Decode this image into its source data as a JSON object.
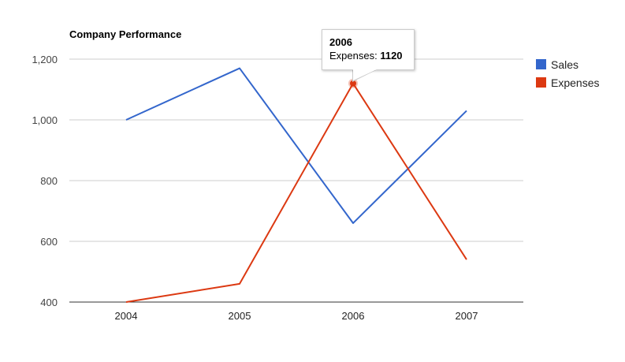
{
  "chart_data": {
    "type": "line",
    "title": "Company Performance",
    "categories": [
      "2004",
      "2005",
      "2006",
      "2007"
    ],
    "series": [
      {
        "name": "Sales",
        "values": [
          1000,
          1170,
          660,
          1030
        ],
        "color": "#3366cc"
      },
      {
        "name": "Expenses",
        "values": [
          400,
          460,
          1120,
          540
        ],
        "color": "#dc3912"
      }
    ],
    "ylim": [
      400,
      1200
    ],
    "yticks": [
      400,
      600,
      800,
      1000,
      1200
    ],
    "ytick_labels": [
      "400",
      "600",
      "800",
      "1,000",
      "1,200"
    ],
    "xlabel": "",
    "ylabel": "",
    "grid": true,
    "legend": "right",
    "tooltip": {
      "category": "2006",
      "series_label": "Expenses:",
      "value": "1120"
    }
  }
}
